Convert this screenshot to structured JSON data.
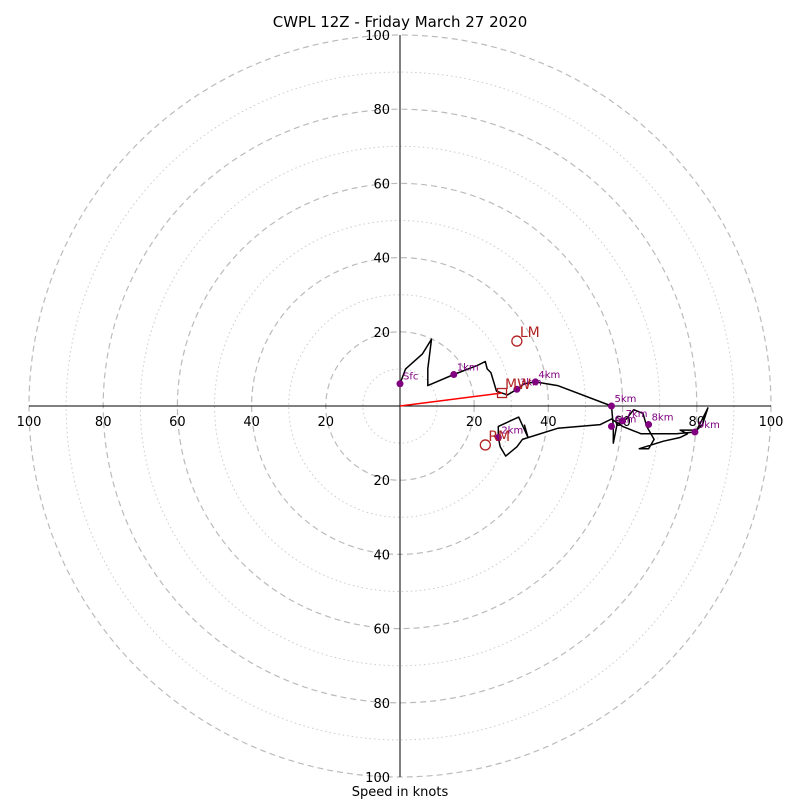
{
  "chart_data": {
    "type": "hodograph",
    "title": "CWPL 12Z - Friday March 27 2020",
    "xlabel": "Speed in knots",
    "xlim": [
      -100,
      100
    ],
    "ylim": [
      -100,
      100
    ],
    "rings": {
      "major": [
        20,
        40,
        60,
        80,
        100
      ],
      "minor": [
        10,
        30,
        50,
        70,
        90
      ]
    },
    "ticks": {
      "x_left": [
        "100",
        "80",
        "60",
        "40",
        "20"
      ],
      "x_right": [
        "20",
        "40",
        "60",
        "80",
        "100"
      ],
      "y_top": [
        "100",
        "80",
        "60",
        "40",
        "20"
      ],
      "y_bottom": [
        "20",
        "40",
        "60",
        "80",
        "100"
      ]
    },
    "trace": [
      [
        0,
        6
      ],
      [
        1.5,
        10
      ],
      [
        6,
        14
      ],
      [
        8.5,
        18
      ],
      [
        7.5,
        10
      ],
      [
        7.5,
        5.5
      ],
      [
        14.5,
        8.5
      ],
      [
        21,
        11
      ],
      [
        23,
        12
      ],
      [
        23.5,
        10
      ],
      [
        24.5,
        9
      ],
      [
        26,
        4
      ],
      [
        29,
        3
      ],
      [
        31.5,
        4.5
      ],
      [
        33.5,
        6
      ],
      [
        36.5,
        6.5
      ],
      [
        42.5,
        5.5
      ],
      [
        57,
        0
      ],
      [
        57.5,
        -5.5
      ],
      [
        57.5,
        -10
      ],
      [
        58.5,
        -5
      ],
      [
        61,
        -3.5
      ],
      [
        63,
        -1
      ],
      [
        65.5,
        -2
      ],
      [
        66.5,
        -5.5
      ],
      [
        68.5,
        -9
      ],
      [
        67,
        -11.5
      ],
      [
        64.5,
        -11.5
      ],
      [
        71,
        -9.5
      ],
      [
        75.5,
        -8.5
      ],
      [
        77.5,
        -7.5
      ],
      [
        75.5,
        -6.5
      ],
      [
        80,
        -6.5
      ],
      [
        83,
        -0.5
      ],
      [
        81.5,
        -5
      ],
      [
        79.5,
        -7
      ],
      [
        74.5,
        -7.5
      ],
      [
        65,
        -7.5
      ],
      [
        60,
        -5.5
      ],
      [
        57,
        -3.5
      ],
      [
        54,
        -5
      ],
      [
        42.5,
        -6
      ],
      [
        33,
        -9
      ],
      [
        31.5,
        -11
      ],
      [
        28.5,
        -13.5
      ],
      [
        27,
        -11
      ],
      [
        26.5,
        -8.5
      ],
      [
        26.5,
        -5.5
      ],
      [
        32,
        -3
      ],
      [
        34.5,
        -8.5
      ],
      [
        33.5,
        -5
      ]
    ],
    "height_markers": [
      {
        "label": "Sfc",
        "u": 0,
        "v": 6
      },
      {
        "label": "1km",
        "u": 14.5,
        "v": 8.5
      },
      {
        "label": "2km",
        "u": 26.5,
        "v": -8.5
      },
      {
        "label": "3km",
        "u": 31.5,
        "v": 4.5
      },
      {
        "label": "4km",
        "u": 36.5,
        "v": 6.5
      },
      {
        "label": "5km",
        "u": 57,
        "v": 0
      },
      {
        "label": "6km",
        "u": 57,
        "v": -5.5
      },
      {
        "label": "7km",
        "u": 60,
        "v": -4
      },
      {
        "label": "8km",
        "u": 67,
        "v": -5
      },
      {
        "label": "9km",
        "u": 79.5,
        "v": -7
      }
    ],
    "storm_motion_markers": [
      {
        "label": "LM",
        "u": 31.5,
        "v": 17.5,
        "shape": "circle"
      },
      {
        "label": "RM",
        "u": 23,
        "v": -10.5,
        "shape": "circle"
      },
      {
        "label": "MW",
        "u": 27.5,
        "v": 3.5,
        "shape": "square"
      }
    ],
    "shear_vector": {
      "from": [
        0,
        0
      ],
      "to": [
        27.5,
        3.5
      ]
    },
    "colors": {
      "trace": "#000000",
      "height_markers": "#800080",
      "storm_markers": "#b22222",
      "shear_vector": "#ff0000",
      "rings": "#bbbbbb"
    }
  }
}
